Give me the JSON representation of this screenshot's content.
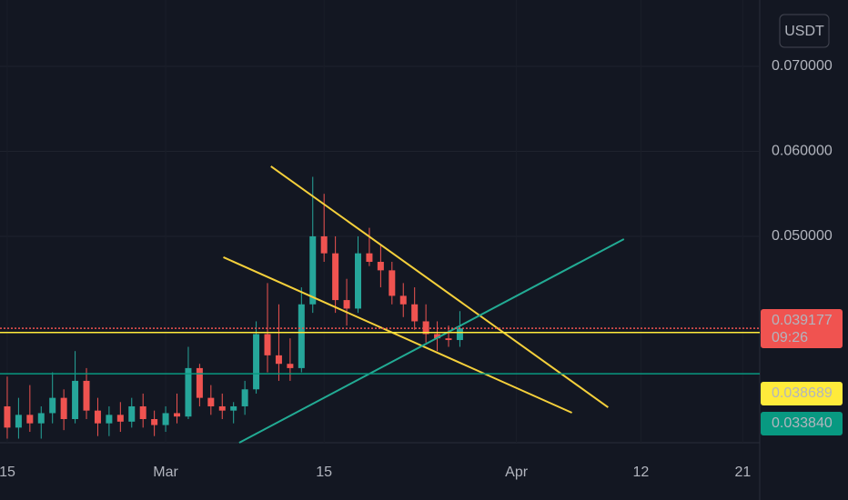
{
  "chart_data": {
    "type": "candlestick",
    "currency": "USDT",
    "x": [
      0,
      1,
      2,
      3,
      4,
      5,
      6,
      7,
      8,
      9,
      10,
      11,
      12,
      13,
      14,
      15,
      16,
      17,
      18,
      19,
      20,
      21,
      22,
      23,
      24,
      25,
      26,
      27,
      28,
      29,
      30,
      31,
      32,
      33,
      34,
      35,
      36,
      37,
      38,
      39,
      40
    ],
    "open": [
      0.03,
      0.0275,
      0.029,
      0.028,
      0.0292,
      0.031,
      0.0285,
      0.033,
      0.0295,
      0.028,
      0.029,
      0.0282,
      0.03,
      0.0285,
      0.0278,
      0.0292,
      0.0288,
      0.0345,
      0.031,
      0.03,
      0.0295,
      0.03,
      0.032,
      0.0385,
      0.036,
      0.035,
      0.0345,
      0.042,
      0.05,
      0.048,
      0.0425,
      0.0415,
      0.048,
      0.047,
      0.046,
      0.043,
      0.042,
      0.04,
      0.0385,
      0.038,
      0.0378
    ],
    "high": [
      0.0335,
      0.031,
      0.0325,
      0.03,
      0.034,
      0.032,
      0.0365,
      0.0345,
      0.031,
      0.03,
      0.0305,
      0.031,
      0.0315,
      0.0295,
      0.03,
      0.0315,
      0.037,
      0.035,
      0.0325,
      0.0315,
      0.0305,
      0.033,
      0.04,
      0.0445,
      0.042,
      0.038,
      0.044,
      0.057,
      0.055,
      0.05,
      0.045,
      0.05,
      0.051,
      0.049,
      0.047,
      0.0445,
      0.044,
      0.042,
      0.04,
      0.0395,
      0.0412
    ],
    "low": [
      0.0262,
      0.0262,
      0.027,
      0.0262,
      0.028,
      0.0272,
      0.028,
      0.0285,
      0.0265,
      0.0265,
      0.027,
      0.0275,
      0.0275,
      0.0265,
      0.027,
      0.028,
      0.0285,
      0.03,
      0.029,
      0.0285,
      0.028,
      0.029,
      0.0315,
      0.034,
      0.033,
      0.033,
      0.034,
      0.041,
      0.047,
      0.041,
      0.0395,
      0.041,
      0.0465,
      0.044,
      0.042,
      0.0405,
      0.039,
      0.0375,
      0.0365,
      0.037,
      0.037
    ],
    "close": [
      0.0275,
      0.029,
      0.028,
      0.0292,
      0.031,
      0.0285,
      0.033,
      0.0295,
      0.028,
      0.029,
      0.0282,
      0.03,
      0.0285,
      0.0278,
      0.0292,
      0.0288,
      0.0345,
      0.031,
      0.03,
      0.0295,
      0.03,
      0.032,
      0.0385,
      0.036,
      0.035,
      0.0345,
      0.042,
      0.05,
      0.048,
      0.0425,
      0.0415,
      0.048,
      0.047,
      0.046,
      0.043,
      0.042,
      0.04,
      0.0385,
      0.038,
      0.0378,
      0.039177
    ],
    "up_color": "#26a69a",
    "down_color": "#ef5350",
    "xlim": [
      -0.64,
      66.5
    ],
    "ylim": [
      0.02572,
      0.0778
    ],
    "xticks": [
      {
        "value": 0,
        "label": "15"
      },
      {
        "value": 14,
        "label": "Mar"
      },
      {
        "value": 28,
        "label": "15"
      },
      {
        "value": 45,
        "label": "Apr"
      },
      {
        "value": 56,
        "label": "12"
      },
      {
        "value": 65,
        "label": "21"
      }
    ],
    "yticks": [
      {
        "value": 0.05,
        "label": "0.050000"
      },
      {
        "value": 0.06,
        "label": "0.060000"
      },
      {
        "value": 0.07,
        "label": "0.070000"
      }
    ],
    "price_lines": [
      {
        "value": 0.039177,
        "label": "0.039177",
        "color": "#f05350",
        "style": "dotted",
        "countdown": "09:26"
      },
      {
        "value": 0.038689,
        "label": "0.038689",
        "color": "#ffeb3b",
        "style": "solid"
      },
      {
        "value": 0.03384,
        "label": "0.033840",
        "color": "#089981",
        "style": "solid"
      }
    ],
    "trend_lines": [
      {
        "color": "#f5d03b",
        "x": [
          23.3,
          53.1
        ],
        "y": [
          0.05824,
          0.02989
        ]
      },
      {
        "color": "#f5d03b",
        "x": [
          19.1,
          49.9
        ],
        "y": [
          0.04754,
          0.02925
        ]
      },
      {
        "color": "#22ab94",
        "x": [
          20.5,
          54.5
        ],
        "y": [
          0.02572,
          0.04968
        ]
      }
    ]
  }
}
